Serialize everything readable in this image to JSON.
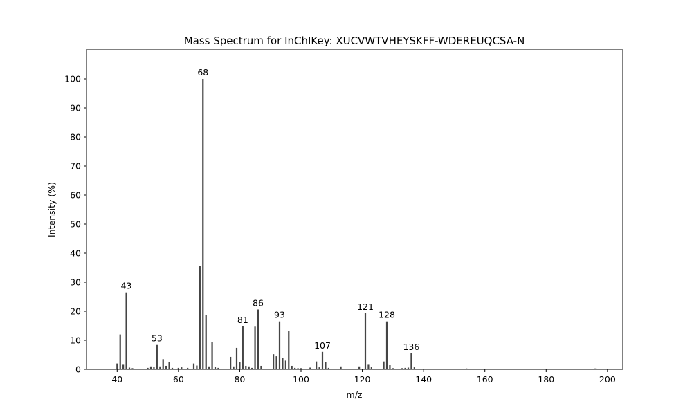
{
  "chart_data": {
    "type": "bar",
    "title": "Mass Spectrum for InChIKey: XUCVWTVHEYSKFF-WDEREUQCSA-N",
    "xlabel": "m/z",
    "ylabel": "Intensity (%)",
    "xlim": [
      30,
      205
    ],
    "ylim": [
      0,
      110
    ],
    "xticks": [
      40,
      60,
      80,
      100,
      120,
      140,
      160,
      180,
      200
    ],
    "yticks": [
      0,
      10,
      20,
      30,
      40,
      50,
      60,
      70,
      80,
      90,
      100
    ],
    "grid": false,
    "bar_color": "#444444",
    "series": [
      {
        "x": [
          40,
          41,
          42,
          43,
          44,
          45,
          50,
          51,
          52,
          53,
          54,
          55,
          56,
          57,
          58,
          60,
          61,
          63,
          65,
          66,
          67,
          68,
          69,
          70,
          71,
          72,
          73,
          77,
          78,
          79,
          80,
          81,
          82,
          83,
          84,
          85,
          86,
          87,
          91,
          92,
          93,
          94,
          95,
          96,
          97,
          98,
          99,
          100,
          103,
          105,
          106,
          107,
          108,
          109,
          113,
          119,
          121,
          122,
          123,
          127,
          128,
          129,
          130,
          133,
          134,
          135,
          136,
          137,
          154,
          196
        ],
        "values": [
          2.0,
          12.0,
          1.8,
          26.5,
          0.6,
          0.4,
          0.5,
          1.0,
          0.8,
          8.4,
          1.0,
          3.5,
          1.2,
          2.5,
          0.5,
          0.5,
          0.7,
          0.5,
          2.0,
          1.3,
          35.7,
          100.0,
          18.6,
          1.0,
          9.3,
          0.8,
          0.5,
          4.3,
          1.0,
          7.4,
          2.6,
          14.8,
          1.2,
          1.0,
          0.5,
          14.7,
          20.6,
          1.2,
          5.2,
          4.5,
          16.5,
          4.0,
          3.0,
          13.2,
          1.2,
          0.5,
          0.4,
          0.4,
          0.6,
          2.7,
          0.7,
          6.0,
          2.4,
          0.5,
          1.0,
          1.0,
          19.3,
          1.8,
          0.9,
          2.7,
          16.5,
          1.5,
          0.4,
          0.4,
          0.5,
          0.6,
          5.5,
          0.7,
          0.3,
          0.3
        ]
      }
    ],
    "peak_labels": [
      {
        "x": 43,
        "y": 26.5,
        "text": "43"
      },
      {
        "x": 53,
        "y": 8.4,
        "text": "53"
      },
      {
        "x": 68,
        "y": 100.0,
        "text": "68"
      },
      {
        "x": 81,
        "y": 14.8,
        "text": "81"
      },
      {
        "x": 86,
        "y": 20.6,
        "text": "86"
      },
      {
        "x": 93,
        "y": 16.5,
        "text": "93"
      },
      {
        "x": 107,
        "y": 6.0,
        "text": "107"
      },
      {
        "x": 121,
        "y": 19.3,
        "text": "121"
      },
      {
        "x": 128,
        "y": 16.5,
        "text": "128"
      },
      {
        "x": 136,
        "y": 5.5,
        "text": "136"
      }
    ]
  }
}
